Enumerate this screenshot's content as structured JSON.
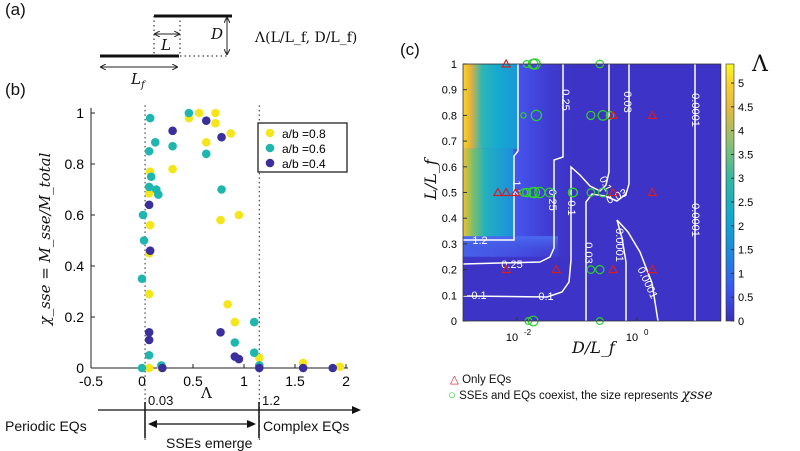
{
  "panels": {
    "a": "(a)",
    "b": "(b)",
    "c": "(c)"
  },
  "schematic": {
    "L": "L",
    "D": "D",
    "Lf": "L",
    "Lf_sub": "f",
    "formula": "Λ(L/L_f, D/L_f)"
  },
  "regimes": {
    "lower_threshold": "0.03",
    "upper_threshold": "1.2",
    "left": "Periodic EQs",
    "middle": "SSEs emerge",
    "right": "Complex EQs"
  },
  "chart_data": [
    {
      "type": "scatter",
      "xlabel": "Λ",
      "ylabel": "χ_sse = M_sse/M_total",
      "xlim": [
        -0.5,
        2
      ],
      "ylim": [
        0,
        1
      ],
      "xticks": [
        "-0.5",
        "0",
        "0.5",
        "1",
        "1.5",
        "2"
      ],
      "yticks": [
        "0",
        "0.2",
        "0.4",
        "0.6",
        "0.8",
        "1"
      ],
      "vlines": [
        0.03,
        1.15
      ],
      "legend": "top-right",
      "series": [
        {
          "name": "a/b =0.8",
          "color": "#f5e61c",
          "points": [
            [
              0.46,
              0.98
            ],
            [
              0.56,
              1.0
            ],
            [
              0.72,
              1.0
            ],
            [
              0.72,
              0.96
            ],
            [
              0.87,
              0.92
            ],
            [
              0.63,
              0.885
            ],
            [
              0.3,
              0.78
            ],
            [
              0.08,
              0.77
            ],
            [
              0.07,
              0.685
            ],
            [
              0.08,
              0.56
            ],
            [
              0.77,
              0.58
            ],
            [
              0.95,
              0.6
            ],
            [
              0.07,
              0.45
            ],
            [
              0.07,
              0.29
            ],
            [
              0.84,
              0.25
            ],
            [
              0.91,
              0.18
            ],
            [
              1.15,
              0.04
            ],
            [
              0.07,
              0
            ],
            [
              0.19,
              0
            ],
            [
              1.58,
              0.02
            ],
            [
              1.94,
              0.005
            ]
          ]
        },
        {
          "name": "a/b =0.6",
          "color": "#1fb6b0",
          "points": [
            [
              0.08,
              0.98
            ],
            [
              0.46,
              1.0
            ],
            [
              0.13,
              0.885
            ],
            [
              0.07,
              0.85
            ],
            [
              0.3,
              0.87
            ],
            [
              0.63,
              0.84
            ],
            [
              0.09,
              0.75
            ],
            [
              0.07,
              0.71
            ],
            [
              0.14,
              0.7
            ],
            [
              0.16,
              0.68
            ],
            [
              0.78,
              0.7
            ],
            [
              0.01,
              0.6
            ],
            [
              0.02,
              0.5
            ],
            [
              0.0,
              0.35
            ],
            [
              0.07,
              0.05
            ],
            [
              0.91,
              0.1
            ],
            [
              1.1,
              0.18
            ],
            [
              1.1,
              0.06
            ],
            [
              1.15,
              0.01
            ],
            [
              0.0,
              0
            ],
            [
              0.19,
              0.01
            ]
          ]
        },
        {
          "name": "a/b =0.4",
          "color": "#3b2f9e",
          "points": [
            [
              0.63,
              0.97
            ],
            [
              0.3,
              0.93
            ],
            [
              0.78,
              0.905
            ],
            [
              0.07,
              0.64
            ],
            [
              0.08,
              0.46
            ],
            [
              0.07,
              0.14
            ],
            [
              0.07,
              0.11
            ],
            [
              0.77,
              0.14
            ],
            [
              0.91,
              0.045
            ],
            [
              0.95,
              0.035
            ],
            [
              0.2,
              0
            ],
            [
              1.15,
              0
            ],
            [
              1.58,
              0
            ],
            [
              1.87,
              0
            ]
          ]
        }
      ]
    },
    {
      "type": "heatmap",
      "xlabel": "D/L_f",
      "ylabel": "L/L_f",
      "xscale": "log",
      "xlim": [
        0.00126,
        25
      ],
      "ylim": [
        0,
        1
      ],
      "xticks": [
        "10^-2",
        "10^0"
      ],
      "yticks": [
        "0",
        "0.1",
        "0.2",
        "0.3",
        "0.4",
        "0.5",
        "0.6",
        "0.7",
        "0.8",
        "0.9",
        "1"
      ],
      "colorbar": {
        "label": "Λ",
        "range": [
          0,
          5.4
        ],
        "ticks": [
          "0",
          "0.5",
          "1",
          "1.5",
          "2",
          "2.5",
          "3",
          "3.5",
          "4",
          "4.5",
          "5"
        ]
      },
      "contour_labels": {
        "l12a": "1.2",
        "l12b": "1.2",
        "l025a": "0.25",
        "l025b": "0.25",
        "l025c": "0.25",
        "l01a": "0.1",
        "l01b": "0.1",
        "l01c": "0.1",
        "l01d": "0.1",
        "l003a": "0.03",
        "l003b": "0.03",
        "l003c": "0.03",
        "l0001a": "0.0001",
        "l0001b": "0.0001",
        "l0001c": "0.0001",
        "l0001d": "0.0001"
      },
      "only_eqs": {
        "label": "Only EQs",
        "color": "#d0202a",
        "points": [
          [
            0.0066,
            1.0
          ],
          [
            0.4,
            0.8
          ],
          [
            1.8,
            0.8
          ],
          [
            0.0048,
            0.5
          ],
          [
            0.0066,
            0.5
          ],
          [
            0.0095,
            0.5
          ],
          [
            0.4,
            0.5
          ],
          [
            1.8,
            0.5
          ],
          [
            0.0066,
            0.2
          ],
          [
            0.045,
            0.2
          ],
          [
            0.4,
            0.2
          ],
          [
            1.8,
            0.2
          ]
        ]
      },
      "coexist": {
        "label": "SSEs and EQs coexist, the size represents",
        "label_symbol": "χsse",
        "color": "#2ed12e",
        "points": [
          [
            0.0145,
            1.0,
            0.4
          ],
          [
            0.0186,
            1.0,
            0.8
          ],
          [
            0.02,
            1.0,
            0.9
          ],
          [
            0.24,
            1.0,
            0.5
          ],
          [
            0.0128,
            0.8,
            0.2
          ],
          [
            0.021,
            0.8,
            0.9
          ],
          [
            0.17,
            0.8,
            0.6
          ],
          [
            0.27,
            0.8,
            0.8
          ],
          [
            0.355,
            0.8,
            0.5
          ],
          [
            0.013,
            0.5,
            0.5
          ],
          [
            0.0145,
            0.5,
            0.6
          ],
          [
            0.018,
            0.5,
            0.8
          ],
          [
            0.0195,
            0.5,
            0.9
          ],
          [
            0.024,
            0.5,
            0.9
          ],
          [
            0.035,
            0.5,
            0.7
          ],
          [
            0.085,
            0.5,
            0.7
          ],
          [
            0.087,
            0.5,
            0.6
          ],
          [
            0.17,
            0.5,
            0.5
          ],
          [
            0.27,
            0.5,
            0.7
          ],
          [
            0.17,
            0.2,
            0.5
          ],
          [
            0.24,
            0.2,
            0.6
          ],
          [
            0.0155,
            0,
            0.4
          ],
          [
            0.0186,
            0,
            0.8
          ],
          [
            0.24,
            0,
            0.4
          ]
        ]
      }
    }
  ]
}
